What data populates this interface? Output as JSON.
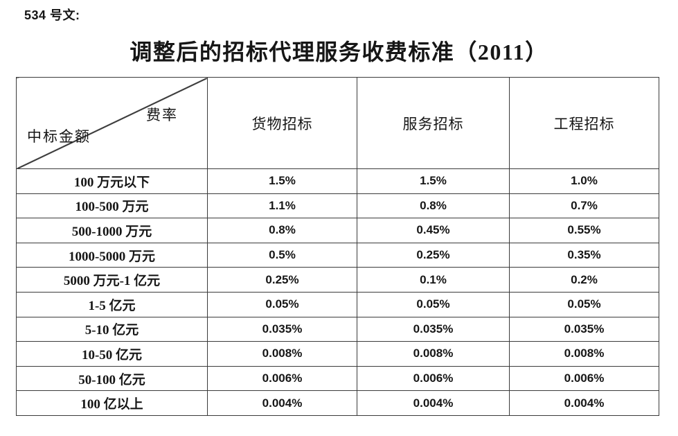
{
  "doc": {
    "ref_label": "534 号文:",
    "title": "调整后的招标代理服务收费标准（2011）"
  },
  "table": {
    "corner": {
      "rate": "费率",
      "amount": "中标金额"
    },
    "columns": [
      "货物招标",
      "服务招标",
      "工程招标"
    ],
    "rows": [
      {
        "label": "100 万元以下",
        "values": [
          "1.5%",
          "1.5%",
          "1.0%"
        ]
      },
      {
        "label": "100-500 万元",
        "values": [
          "1.1%",
          "0.8%",
          "0.7%"
        ]
      },
      {
        "label": "500-1000 万元",
        "values": [
          "0.8%",
          "0.45%",
          "0.55%"
        ]
      },
      {
        "label": "1000-5000 万元",
        "values": [
          "0.5%",
          "0.25%",
          "0.35%"
        ]
      },
      {
        "label": "5000 万元-1 亿元",
        "values": [
          "0.25%",
          "0.1%",
          "0.2%"
        ]
      },
      {
        "label": "1-5 亿元",
        "values": [
          "0.05%",
          "0.05%",
          "0.05%"
        ]
      },
      {
        "label": "5-10 亿元",
        "values": [
          "0.035%",
          "0.035%",
          "0.035%"
        ]
      },
      {
        "label": "10-50 亿元",
        "values": [
          "0.008%",
          "0.008%",
          "0.008%"
        ]
      },
      {
        "label": "50-100 亿元",
        "values": [
          "0.006%",
          "0.006%",
          "0.006%"
        ]
      },
      {
        "label": "100 亿以上",
        "values": [
          "0.004%",
          "0.004%",
          "0.004%"
        ]
      }
    ],
    "colors": {
      "text": "#161616",
      "border": "#3a3a3a",
      "background": "#ffffff"
    }
  }
}
